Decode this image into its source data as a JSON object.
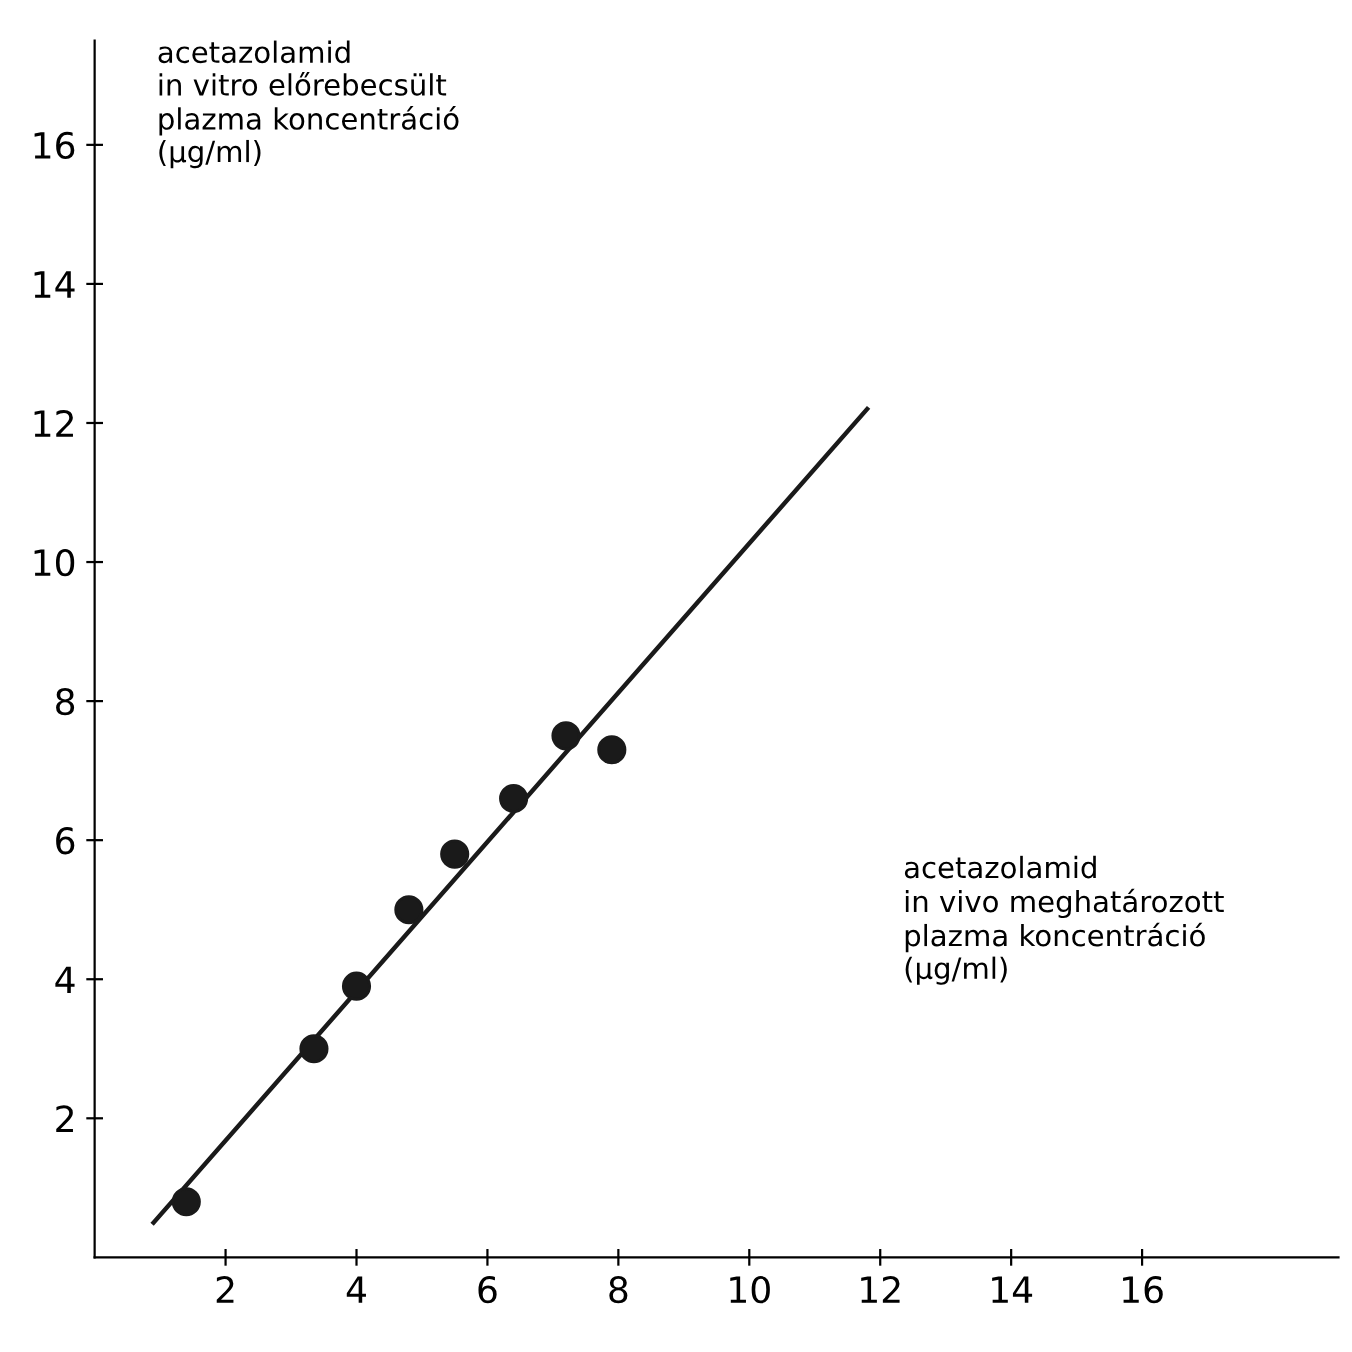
{
  "chart_data": {
    "type": "scatter",
    "xlabel": "acetazolamid\nin vivo meghatározott\nplazma koncentráció\n(μg/ml)",
    "ylabel": "acetazolamid\nin vitro előrebecsült\nplazma koncentráció\n(μg/ml)",
    "series": [
      {
        "color": "#1a1a1a",
        "marker": "circle",
        "x": [
          1.4,
          3.35,
          4.0,
          4.8,
          5.5,
          6.4,
          7.2,
          7.9
        ],
        "values": [
          0.8,
          3.0,
          3.9,
          5.0,
          5.8,
          6.6,
          7.5,
          7.3
        ]
      },
      {
        "type": "line",
        "color": "#1a1a1a",
        "marker": "none",
        "line_style": "solid",
        "x": [
          0.9,
          11.8
        ],
        "values": [
          0.5,
          12.2
        ]
      }
    ],
    "grid": false,
    "xlim": [
      0,
      19
    ],
    "ylim": [
      0,
      17.5
    ],
    "xticks": [
      2,
      4,
      6,
      8,
      10,
      12,
      14,
      16
    ],
    "yticks": [
      2,
      4,
      6,
      8,
      10,
      12,
      14,
      16
    ]
  }
}
